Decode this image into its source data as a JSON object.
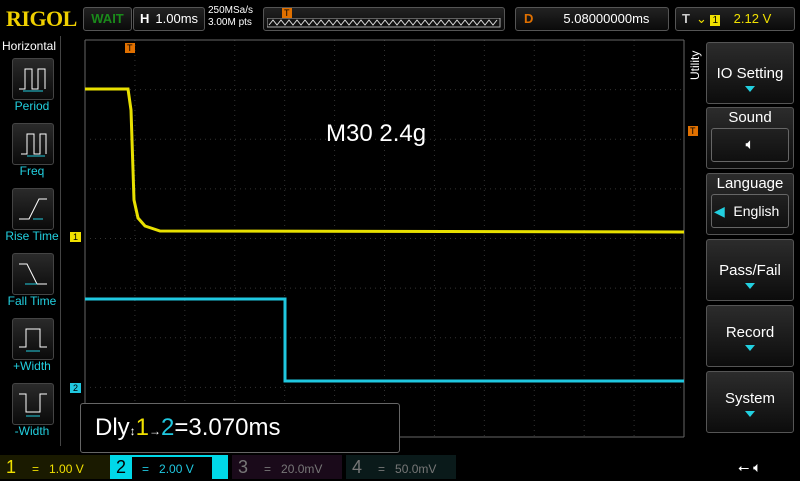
{
  "header": {
    "brand": "RIGOL",
    "run_status": "WAIT",
    "timebase_label": "H",
    "timebase": "1.00ms",
    "sample_rate": "250MSa/s",
    "memory_depth": "3.00M pts",
    "trigger_pos_marker": "T",
    "delay_label": "D",
    "delay": "5.08000000ms",
    "trigger_label": "T",
    "trigger_source": "1",
    "trigger_level": "2.12 V"
  },
  "left_menu": {
    "title": "Horizontal",
    "items": [
      {
        "label": "Period",
        "icon": "period-icon"
      },
      {
        "label": "Freq",
        "icon": "frequency-icon"
      },
      {
        "label": "Rise Time",
        "icon": "rise-time-icon"
      },
      {
        "label": "Fall Time",
        "icon": "fall-time-icon"
      },
      {
        "label": "+Width",
        "icon": "positive-width-icon"
      },
      {
        "label": "-Width",
        "icon": "negative-width-icon"
      }
    ]
  },
  "right_menu": {
    "title": "Utility",
    "items": [
      {
        "label": "IO Setting"
      },
      {
        "label": "Sound",
        "value_icon": "speaker-muted-icon"
      },
      {
        "label": "Language",
        "value": "English"
      },
      {
        "label": "Pass/Fail"
      },
      {
        "label": "Record"
      },
      {
        "label": "System"
      }
    ]
  },
  "screen": {
    "annotation": "M30 2.4g",
    "ch1_marker": "1",
    "ch2_marker": "2",
    "trigger_marker": "T"
  },
  "measurement": {
    "prefix": "Dly",
    "src1": "1",
    "src2": "2",
    "value": "=3.070ms"
  },
  "channels": [
    {
      "num": "1",
      "coupling": "=",
      "scale": "1.00 V",
      "color": "#f0e000"
    },
    {
      "num": "2",
      "coupling": "=",
      "scale": "2.00 V",
      "color": "#00e0f0"
    },
    {
      "num": "3",
      "coupling": "=",
      "scale": "20.0mV",
      "color": "#c040c0"
    },
    {
      "num": "4",
      "coupling": "=",
      "scale": "50.0mV",
      "color": "#20a0a0"
    }
  ],
  "status_icons": [
    "usb-icon",
    "speaker-muted-icon"
  ]
}
